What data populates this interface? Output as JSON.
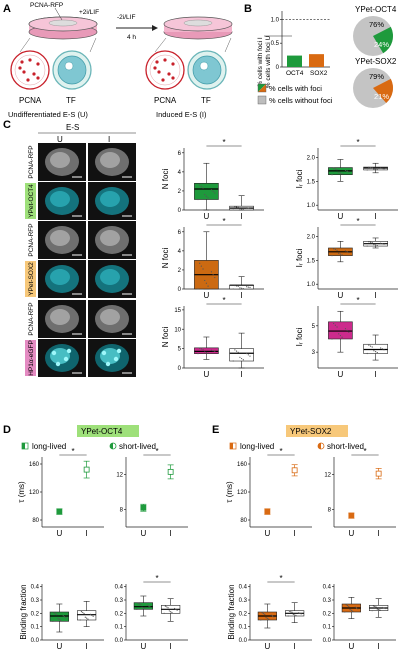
{
  "panelA": {
    "letter": "A",
    "plate_label": "PCNA-RFP",
    "media_label": "+2i/LIF",
    "transition_label": "-2i/LIF",
    "time_label": "4 h",
    "cell_labels": [
      "PCNA",
      "TF",
      "PCNA",
      "TF"
    ],
    "left_caption": "Undifferentiated E-S (U)",
    "right_caption": "Induced E-S (I)"
  },
  "panelB": {
    "letter": "B",
    "bar_ylabel": "% cells with foci I",
    "bar_ylabel2": "% cells with foci U",
    "yticks": [
      "0",
      "0.5",
      "1.0"
    ],
    "categories": [
      "OCT4",
      "SOX2"
    ],
    "values": [
      0.24,
      0.27
    ],
    "bar_colors": [
      "#1e9a3c",
      "#d96a12"
    ],
    "pie1_title": "YPet-OCT4",
    "pie1_with": "24%",
    "pie1_without": "76%",
    "pie2_title": "YPet-SOX2",
    "pie2_with": "21%",
    "pie2_without": "79%",
    "legend_with": "% cells with foci",
    "legend_without": "% cells without foci"
  },
  "panelC": {
    "letter": "C",
    "es_label": "E-S",
    "col_u": "U",
    "col_i": "I",
    "row_labels": [
      "PCNA-RFP",
      "YPet-OCT4",
      "PCNA-RFP",
      "YPet-SOX2",
      "PCNA-RFP",
      "HP1α-eGFP"
    ],
    "nfoci_label": "N foci",
    "ir_label": "Iᵣ foci",
    "star": "*",
    "plots": [
      {
        "ylabel": "N foci",
        "yticks": [
          "0",
          "2",
          "4",
          "6"
        ],
        "ymin": 0,
        "ymax": 6.5,
        "color": "#1e9a3c",
        "U": {
          "q1": 1.1,
          "med": 2.2,
          "q3": 2.8,
          "lo": 0,
          "hi": 4.9
        },
        "I": {
          "q1": 0,
          "med": 0.2,
          "q3": 0.4,
          "lo": 0,
          "hi": 1.5
        }
      },
      {
        "ylabel": "Iᵣ foci",
        "yticks": [
          "1.0",
          "1.5",
          "2.0"
        ],
        "ymin": 0.9,
        "ymax": 2.2,
        "color": "#1e9a3c",
        "U": {
          "q1": 1.64,
          "med": 1.72,
          "q3": 1.79,
          "lo": 1.5,
          "hi": 1.96
        },
        "I": {
          "q1": 1.74,
          "med": 1.78,
          "q3": 1.8,
          "lo": 1.68,
          "hi": 1.88
        }
      },
      {
        "ylabel": "N foci",
        "yticks": [
          "0",
          "2",
          "4",
          "6"
        ],
        "ymin": 0,
        "ymax": 6.5,
        "color": "#cc6a12",
        "U": {
          "q1": 0,
          "med": 1.5,
          "q3": 3.0,
          "lo": 0,
          "hi": 6
        },
        "I": {
          "q1": 0,
          "med": 0.4,
          "q3": 0.4,
          "lo": 0,
          "hi": 1.3
        }
      },
      {
        "ylabel": "Iᵣ foci",
        "yticks": [
          "1.0",
          "1.5",
          "2.0"
        ],
        "ymin": 0.9,
        "ymax": 2.2,
        "color": "#cc6a12",
        "U": {
          "q1": 1.6,
          "med": 1.68,
          "q3": 1.76,
          "lo": 1.47,
          "hi": 1.9
        },
        "I": {
          "q1": 1.8,
          "med": 1.85,
          "q3": 1.9,
          "lo": 1.76,
          "hi": 1.97
        }
      },
      {
        "ylabel": "N foci",
        "yticks": [
          "0",
          "5",
          "10",
          "15"
        ],
        "ymin": 0,
        "ymax": 16,
        "color": "#cc2a8c",
        "U": {
          "q1": 3.7,
          "med": 4.3,
          "q3": 5.2,
          "lo": 2.2,
          "hi": 8
        },
        "I": {
          "q1": 1.8,
          "med": 3.8,
          "q3": 5.0,
          "lo": 0,
          "hi": 9
        }
      },
      {
        "ylabel": "Iᵣ foci",
        "yticks": [
          "3",
          "5"
        ],
        "ymin": 1.8,
        "ymax": 6.5,
        "color": "#cc2a8c",
        "U": {
          "q1": 4.0,
          "med": 4.6,
          "q3": 5.3,
          "lo": 3.0,
          "hi": 6.1
        },
        "I": {
          "q1": 2.9,
          "med": 3.2,
          "q3": 3.6,
          "lo": 2.4,
          "hi": 4.3
        }
      }
    ]
  },
  "panelD": {
    "letter": "D",
    "title": "YPet-OCT4",
    "title_bg": "#9ee07a",
    "long_label": "long-lived",
    "short_label": "short-lived",
    "tau_label": "τ (ms)",
    "bf_label": "Binding fraction",
    "tau_yticks": [
      "40",
      "80",
      "120",
      "160"
    ],
    "bf_yticks": [
      "0.0",
      "0.1",
      "0.2",
      "0.3",
      "0.4"
    ],
    "x_labels": [
      "U",
      "I"
    ],
    "long_tau": {
      "U": 92,
      "I": 152,
      "Uerr": 4,
      "Ierr": 12
    },
    "short_tau": {
      "U": 8.2,
      "I": 12.3,
      "Uerr": 0.4,
      "Ierr": 0.8
    },
    "short_yticks": [
      "4",
      "8",
      "12"
    ],
    "bf_long": {
      "U": {
        "q1": 0.14,
        "med": 0.18,
        "q3": 0.21,
        "lo": 0.06,
        "hi": 0.27
      },
      "I": {
        "q1": 0.15,
        "med": 0.19,
        "q3": 0.22,
        "lo": 0.1,
        "hi": 0.29
      }
    },
    "bf_short": {
      "U": {
        "q1": 0.23,
        "med": 0.25,
        "q3": 0.28,
        "lo": 0.18,
        "hi": 0.33
      },
      "I": {
        "q1": 0.2,
        "med": 0.23,
        "q3": 0.26,
        "lo": 0.14,
        "hi": 0.31
      }
    },
    "color": "#1e9a3c",
    "star": "*"
  },
  "panelE": {
    "letter": "E",
    "title": "YPet-SOX2",
    "title_bg": "#f7c87a",
    "long_label": "long-lived",
    "short_label": "short-lived",
    "tau_label": "τ (ms)",
    "bf_label": "Binding fraction",
    "tau_yticks": [
      "40",
      "80",
      "120",
      "160"
    ],
    "bf_yticks": [
      "0.0",
      "0.1",
      "0.2",
      "0.3",
      "0.4"
    ],
    "x_labels": [
      "U",
      "I"
    ],
    "long_tau": {
      "U": 92,
      "I": 151,
      "Uerr": 4,
      "Ierr": 8
    },
    "short_tau": {
      "U": 7.3,
      "I": 12.1,
      "Uerr": 0.3,
      "Ierr": 0.6
    },
    "short_yticks": [
      "4",
      "8",
      "12"
    ],
    "bf_long": {
      "U": {
        "q1": 0.15,
        "med": 0.18,
        "q3": 0.21,
        "lo": 0.09,
        "hi": 0.27
      },
      "I": {
        "q1": 0.18,
        "med": 0.2,
        "q3": 0.22,
        "lo": 0.13,
        "hi": 0.28
      }
    },
    "bf_short": {
      "U": {
        "q1": 0.21,
        "med": 0.24,
        "q3": 0.27,
        "lo": 0.16,
        "hi": 0.32
      },
      "I": {
        "q1": 0.22,
        "med": 0.24,
        "q3": 0.26,
        "lo": 0.17,
        "hi": 0.31
      }
    },
    "color": "#d96a12",
    "star": "*"
  }
}
